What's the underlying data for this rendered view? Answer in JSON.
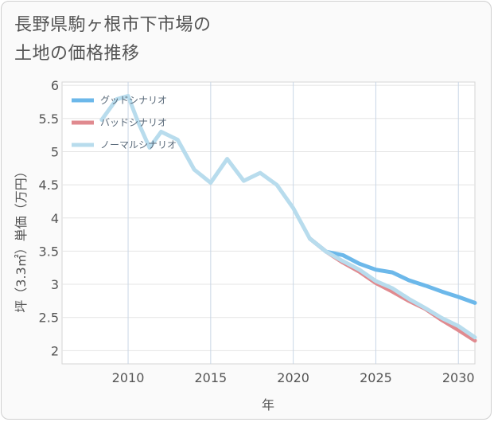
{
  "title_lines": [
    "長野県駒ヶ根市下市場の",
    "土地の価格推移"
  ],
  "chart_data": {
    "type": "line",
    "title": "長野県駒ヶ根市下市場の土地の価格推移",
    "xlabel": "年",
    "ylabel": "坪（3.3㎡）単価（万円）",
    "xlim": [
      2006,
      2031
    ],
    "ylim": [
      1.8,
      6.05
    ],
    "xticks": [
      2010,
      2015,
      2020,
      2025,
      2030
    ],
    "yticks": [
      2,
      2.5,
      3,
      3.5,
      4,
      4.5,
      5,
      5.5,
      6
    ],
    "grid": true,
    "legend_position": "top-left",
    "series": [
      {
        "name": "グッドシナリオ",
        "color": "#6cb8ea",
        "x": [
          2021,
          2022,
          2023,
          2024,
          2025,
          2026,
          2027,
          2028,
          2029,
          2030,
          2031
        ],
        "y": [
          3.69,
          3.49,
          3.44,
          3.31,
          3.22,
          3.18,
          3.06,
          2.98,
          2.89,
          2.81,
          2.72
        ]
      },
      {
        "name": "バッドシナリオ",
        "color": "#e08a8f",
        "x": [
          2021,
          2022,
          2023,
          2024,
          2025,
          2026,
          2027,
          2028,
          2029,
          2030,
          2031
        ],
        "y": [
          3.69,
          3.49,
          3.33,
          3.19,
          3.02,
          2.89,
          2.75,
          2.63,
          2.46,
          2.31,
          2.15
        ]
      },
      {
        "name": "ノーマルシナリオ",
        "color": "#b8dced",
        "x": [
          2008.4,
          2009.3,
          2010,
          2010.6,
          2011.3,
          2012,
          2013,
          2014,
          2015,
          2016,
          2017,
          2018,
          2019,
          2020,
          2021,
          2022,
          2023,
          2024,
          2025,
          2026,
          2027,
          2028,
          2029,
          2030,
          2031
        ],
        "y": [
          5.48,
          5.79,
          5.84,
          5.45,
          5.06,
          5.3,
          5.18,
          4.73,
          4.53,
          4.89,
          4.56,
          4.68,
          4.5,
          4.15,
          3.69,
          3.49,
          3.35,
          3.22,
          3.05,
          2.94,
          2.78,
          2.64,
          2.49,
          2.37,
          2.2
        ]
      }
    ]
  }
}
